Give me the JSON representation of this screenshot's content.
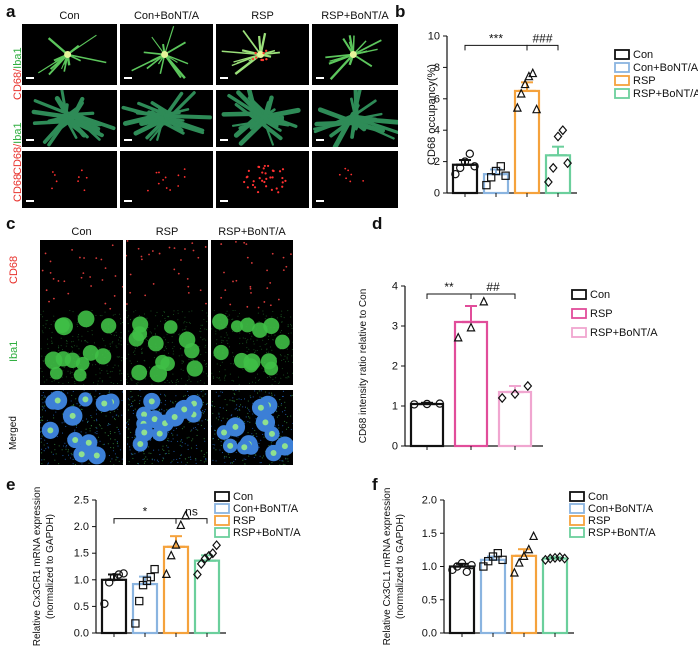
{
  "panels": {
    "a": {
      "label": "a",
      "columns": [
        "Con",
        "Con+BoNT/A",
        "RSP",
        "RSP+BoNT/A"
      ],
      "rows": [
        {
          "label_red": "CD68/",
          "label_green": "Iba1"
        },
        {
          "label_red": "CD68/",
          "label_green": "Iba1"
        },
        {
          "label_red": "CD68",
          "label_green": ""
        }
      ]
    },
    "c": {
      "label": "c",
      "columns": [
        "Con",
        "RSP",
        "RSP+BoNT/A"
      ],
      "rows": [
        {
          "label": "CD68",
          "color": "#e8322d"
        },
        {
          "label": "Iba1",
          "color": "#2fae3f"
        },
        {
          "label": "Merged",
          "color": "#111111"
        }
      ]
    }
  },
  "chart_data": [
    {
      "panel": "b",
      "type": "bar",
      "categories": [
        "Con",
        "Con+BoNT/A",
        "RSP",
        "RSP+BoNT/A"
      ],
      "values": [
        1.8,
        1.2,
        6.5,
        2.4
      ],
      "errors": [
        0.3,
        0.3,
        0.55,
        0.55
      ],
      "colors": [
        "#111111",
        "#8ab4e0",
        "#f5a23c",
        "#6bcf9c"
      ],
      "markers": [
        "circle",
        "square",
        "triangle",
        "diamond"
      ],
      "points": [
        [
          1.2,
          1.6,
          2.0,
          2.5,
          1.7
        ],
        [
          0.5,
          1.0,
          1.4,
          1.7,
          1.1
        ],
        [
          5.4,
          6.3,
          6.9,
          7.4,
          7.6,
          5.3
        ],
        [
          0.7,
          1.6,
          3.6,
          4.0,
          1.9
        ]
      ],
      "ylabel": "CD68 occupancy(%)",
      "ylim": [
        0,
        10
      ],
      "yticks": [
        0,
        2,
        4,
        6,
        8,
        10
      ],
      "annotations": [
        "***",
        "###"
      ],
      "legend": [
        "Con",
        "Con+BoNT/A",
        "RSP",
        "RSP+BoNT/A"
      ]
    },
    {
      "panel": "d",
      "type": "bar",
      "categories": [
        "Con",
        "RSP",
        "RSP+BoNT/A"
      ],
      "values": [
        1.05,
        3.1,
        1.35
      ],
      "errors": [
        0.03,
        0.4,
        0.15
      ],
      "colors": [
        "#111111",
        "#e14d9a",
        "#f0a6d0"
      ],
      "markers": [
        "circle",
        "triangle",
        "diamond"
      ],
      "points": [
        [
          1.04,
          1.05,
          1.06
        ],
        [
          2.7,
          2.95,
          3.6
        ],
        [
          1.2,
          1.3,
          1.5
        ]
      ],
      "ylabel": "CD68 intensity ratio relative to Con",
      "ylim": [
        0,
        4
      ],
      "yticks": [
        0,
        1,
        2,
        3,
        4
      ],
      "annotations": [
        "**",
        "##"
      ],
      "legend": [
        "Con",
        "RSP",
        "RSP+BoNT/A"
      ]
    },
    {
      "panel": "e",
      "type": "bar",
      "categories": [
        "Con",
        "Con+BoNT/A",
        "RSP",
        "RSP+BoNT/A"
      ],
      "values": [
        1.0,
        0.92,
        1.62,
        1.36
      ],
      "errors": [
        0.1,
        0.14,
        0.2,
        0.1
      ],
      "colors": [
        "#111111",
        "#8ab4e0",
        "#f5a23c",
        "#6bcf9c"
      ],
      "markers": [
        "circle",
        "square",
        "triangle",
        "diamond"
      ],
      "points": [
        [
          0.55,
          0.95,
          1.05,
          1.1,
          1.12
        ],
        [
          0.18,
          0.6,
          0.9,
          0.98,
          1.05,
          1.2
        ],
        [
          1.1,
          1.45,
          1.65,
          2.02,
          2.2
        ],
        [
          1.1,
          1.3,
          1.4,
          1.45,
          1.5,
          1.65
        ]
      ],
      "ylabel": "Relative Cx3CR1 mRNA expression",
      "ylabel2": "(normalized to GAPDH)",
      "ylim": [
        0,
        2.5
      ],
      "yticks": [
        0.0,
        0.5,
        1.0,
        1.5,
        2.0,
        2.5
      ],
      "annotations": [
        "*",
        "ns"
      ],
      "legend": [
        "Con",
        "Con+BoNT/A",
        "RSP",
        "RSP+BoNT/A"
      ]
    },
    {
      "panel": "f",
      "type": "bar",
      "categories": [
        "Con",
        "Con+BoNT/A",
        "RSP",
        "RSP+BoNT/A"
      ],
      "values": [
        1.0,
        1.1,
        1.16,
        1.12
      ],
      "errors": [
        0.04,
        0.05,
        0.1,
        0.02
      ],
      "colors": [
        "#111111",
        "#8ab4e0",
        "#f5a23c",
        "#6bcf9c"
      ],
      "markers": [
        "circle",
        "square",
        "triangle",
        "diamond"
      ],
      "points": [
        [
          0.95,
          1.0,
          1.05,
          0.92,
          1.02
        ],
        [
          1.0,
          1.08,
          1.15,
          1.2,
          1.1
        ],
        [
          0.9,
          1.05,
          1.15,
          1.25,
          1.45
        ],
        [
          1.1,
          1.12,
          1.13,
          1.14,
          1.12
        ]
      ],
      "ylabel": "Relative Cx3CL1 mRNA expression",
      "ylabel2": "(normalized to GAPDH)",
      "ylim": [
        0,
        2.0
      ],
      "yticks": [
        0.0,
        0.5,
        1.0,
        1.5,
        2.0
      ],
      "ytick_labels": [
        "0.0",
        "0.5",
        "1.0",
        "1.5",
        "2.0"
      ],
      "annotations": [],
      "legend": [
        "Con",
        "Con+BoNT/A",
        "RSP",
        "RSP+BoNT/A"
      ]
    }
  ]
}
